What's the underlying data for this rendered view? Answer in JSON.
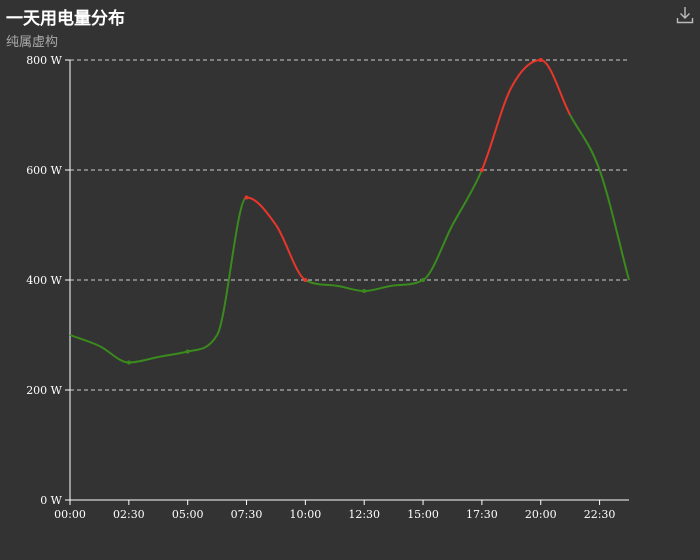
{
  "header": {
    "title": "一天用电量分布",
    "subtitle": "纯属虚构"
  },
  "toolbar": {
    "download_icon": "download-icon"
  },
  "colors": {
    "background": "#333333",
    "normal_line": "#3a8a1e",
    "peak_line": "#e8372a",
    "grid": "#cccccc",
    "axis": "#ffffff"
  },
  "chart_data": {
    "type": "line",
    "smooth": true,
    "x": [
      "00:00",
      "01:15",
      "02:30",
      "03:45",
      "05:00",
      "06:15",
      "07:30",
      "08:45",
      "10:00",
      "11:15",
      "12:30",
      "13:45",
      "15:00",
      "16:15",
      "17:30",
      "18:45",
      "20:00",
      "21:15",
      "22:30",
      "23:45"
    ],
    "x_tick_labels": [
      "00:00",
      "02:30",
      "05:00",
      "07:30",
      "10:00",
      "12:30",
      "15:00",
      "17:30",
      "20:00",
      "22:30"
    ],
    "y_tick_labels": [
      "0 W",
      "200 W",
      "400 W",
      "600 W",
      "800 W"
    ],
    "series": [
      {
        "values": [
          300,
          280,
          250,
          260,
          270,
          300,
          550,
          500,
          400,
          390,
          380,
          390,
          400,
          500,
          600,
          750,
          800,
          700,
          600,
          400
        ]
      }
    ],
    "ylim": [
      0,
      800
    ],
    "y_unit": "W",
    "highlight_ranges": [
      {
        "from": 6,
        "to": 8
      },
      {
        "from": 14,
        "to": 17
      }
    ],
    "grid": "dashed horizontal"
  }
}
